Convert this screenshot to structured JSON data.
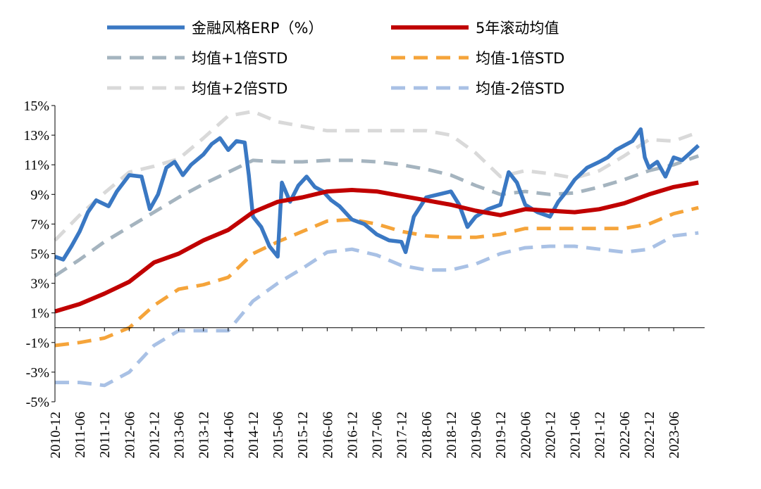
{
  "chart_data": {
    "type": "line",
    "title": "",
    "xlabel": "",
    "ylabel": "",
    "ylim": [
      -5,
      15
    ],
    "yticks": [
      -5,
      -3,
      -1,
      1,
      3,
      5,
      7,
      9,
      11,
      13,
      15
    ],
    "ytick_labels": [
      "-5%",
      "-3%",
      "-1%",
      "1%",
      "3%",
      "5%",
      "7%",
      "9%",
      "11%",
      "13%",
      "15%"
    ],
    "x_start": "2010-12",
    "x_end": "2024-01",
    "xtick_labels": [
      "2010-12",
      "2011-06",
      "2011-12",
      "2012-06",
      "2012-12",
      "2013-06",
      "2013-12",
      "2014-06",
      "2014-12",
      "2015-06",
      "2015-12",
      "2016-06",
      "2016-12",
      "2017-06",
      "2017-12",
      "2018-06",
      "2018-12",
      "2019-06",
      "2019-12",
      "2020-06",
      "2020-12",
      "2021-06",
      "2021-12",
      "2022-06",
      "2022-12",
      "2023-06"
    ],
    "legend_position": "top",
    "series": [
      {
        "name": "金融风格ERP（%）",
        "color": "#3A78C3",
        "style": "solid",
        "x": [
          "2010-12",
          "2011-02",
          "2011-04",
          "2011-06",
          "2011-08",
          "2011-10",
          "2012-01",
          "2012-03",
          "2012-06",
          "2012-09",
          "2012-11",
          "2013-01",
          "2013-03",
          "2013-05",
          "2013-07",
          "2013-09",
          "2013-12",
          "2014-02",
          "2014-04",
          "2014-06",
          "2014-08",
          "2014-10",
          "2014-11",
          "2014-12",
          "2015-02",
          "2015-04",
          "2015-06",
          "2015-07",
          "2015-09",
          "2015-11",
          "2016-01",
          "2016-03",
          "2016-05",
          "2016-07",
          "2016-09",
          "2016-12",
          "2017-03",
          "2017-06",
          "2017-09",
          "2017-12",
          "2018-01",
          "2018-03",
          "2018-06",
          "2018-09",
          "2018-12",
          "2019-02",
          "2019-04",
          "2019-06",
          "2019-09",
          "2019-12",
          "2020-02",
          "2020-04",
          "2020-06",
          "2020-09",
          "2020-12",
          "2021-02",
          "2021-04",
          "2021-06",
          "2021-09",
          "2021-12",
          "2022-02",
          "2022-04",
          "2022-06",
          "2022-08",
          "2022-10",
          "2022-11",
          "2022-12",
          "2023-02",
          "2023-04",
          "2023-06",
          "2023-08",
          "2023-10",
          "2023-12"
        ],
        "values": [
          4.8,
          4.6,
          5.5,
          6.5,
          7.8,
          8.6,
          8.2,
          9.2,
          10.3,
          10.2,
          8.0,
          9.0,
          10.8,
          11.2,
          10.3,
          11.0,
          11.7,
          12.4,
          12.8,
          12.0,
          12.6,
          12.5,
          10.3,
          7.5,
          6.8,
          5.5,
          4.8,
          9.8,
          8.5,
          9.6,
          10.2,
          9.5,
          9.2,
          8.6,
          8.2,
          7.3,
          7.0,
          6.3,
          5.9,
          5.8,
          5.1,
          7.5,
          8.8,
          9.0,
          9.2,
          8.3,
          6.8,
          7.5,
          8.0,
          8.3,
          10.5,
          9.8,
          8.3,
          7.8,
          7.5,
          8.5,
          9.2,
          10.0,
          10.8,
          11.2,
          11.5,
          12.0,
          12.3,
          12.6,
          13.4,
          11.5,
          10.8,
          11.2,
          10.2,
          11.5,
          11.3,
          11.8,
          12.3
        ]
      },
      {
        "name": "5年滚动均值",
        "color": "#C00000",
        "style": "solid",
        "x": [
          "2010-12",
          "2011-06",
          "2011-12",
          "2012-06",
          "2012-12",
          "2013-06",
          "2013-12",
          "2014-06",
          "2014-12",
          "2015-06",
          "2015-12",
          "2016-06",
          "2016-12",
          "2017-06",
          "2017-12",
          "2018-06",
          "2018-12",
          "2019-06",
          "2019-12",
          "2020-06",
          "2020-12",
          "2021-06",
          "2021-12",
          "2022-06",
          "2022-12",
          "2023-06",
          "2023-12"
        ],
        "values": [
          1.1,
          1.6,
          2.3,
          3.1,
          4.4,
          5.0,
          5.9,
          6.6,
          7.8,
          8.5,
          8.8,
          9.2,
          9.3,
          9.2,
          8.9,
          8.6,
          8.3,
          7.9,
          7.6,
          8.0,
          7.9,
          7.8,
          8.0,
          8.4,
          9.0,
          9.5,
          9.8
        ]
      },
      {
        "name": "均值+1倍STD",
        "color": "#A5B4BF",
        "style": "dashed",
        "x": [
          "2010-12",
          "2011-06",
          "2011-12",
          "2012-06",
          "2012-12",
          "2013-06",
          "2013-12",
          "2014-06",
          "2014-12",
          "2015-06",
          "2015-12",
          "2016-06",
          "2016-12",
          "2017-06",
          "2017-12",
          "2018-06",
          "2018-12",
          "2019-06",
          "2019-12",
          "2020-06",
          "2020-12",
          "2021-06",
          "2021-12",
          "2022-06",
          "2022-12",
          "2023-06",
          "2023-12"
        ],
        "values": [
          3.5,
          4.6,
          5.8,
          6.8,
          7.8,
          8.8,
          9.7,
          10.5,
          11.3,
          11.2,
          11.2,
          11.3,
          11.3,
          11.2,
          11.0,
          10.7,
          10.3,
          9.6,
          9.0,
          9.2,
          9.0,
          9.1,
          9.5,
          10.0,
          10.6,
          11.0,
          11.6
        ]
      },
      {
        "name": "均值-1倍STD",
        "color": "#F5A43A",
        "style": "dashed",
        "x": [
          "2010-12",
          "2011-06",
          "2011-12",
          "2012-06",
          "2012-12",
          "2013-06",
          "2013-12",
          "2014-06",
          "2014-12",
          "2015-06",
          "2015-12",
          "2016-06",
          "2016-12",
          "2017-06",
          "2017-12",
          "2018-06",
          "2018-12",
          "2019-06",
          "2019-12",
          "2020-06",
          "2020-12",
          "2021-06",
          "2021-12",
          "2022-06",
          "2022-12",
          "2023-06",
          "2023-12"
        ],
        "values": [
          -1.2,
          -1.0,
          -0.7,
          0.0,
          1.5,
          2.6,
          2.9,
          3.4,
          5.0,
          5.8,
          6.5,
          7.2,
          7.3,
          7.0,
          6.5,
          6.2,
          6.1,
          6.1,
          6.3,
          6.7,
          6.7,
          6.7,
          6.7,
          6.7,
          7.0,
          7.7,
          8.1
        ]
      },
      {
        "name": "均值+2倍STD",
        "color": "#D9D9D9",
        "style": "dashed",
        "x": [
          "2010-12",
          "2011-06",
          "2011-12",
          "2012-06",
          "2012-12",
          "2013-06",
          "2013-12",
          "2014-06",
          "2014-12",
          "2015-06",
          "2015-12",
          "2016-06",
          "2016-12",
          "2017-06",
          "2017-12",
          "2018-06",
          "2018-12",
          "2019-06",
          "2019-12",
          "2020-06",
          "2020-12",
          "2021-06",
          "2021-12",
          "2022-06",
          "2022-12",
          "2023-06",
          "2023-12"
        ],
        "values": [
          5.9,
          7.6,
          9.1,
          10.5,
          10.9,
          11.4,
          12.8,
          14.3,
          14.6,
          13.9,
          13.6,
          13.3,
          13.3,
          13.3,
          13.3,
          13.3,
          13.0,
          11.8,
          10.2,
          10.6,
          10.4,
          10.1,
          10.6,
          11.6,
          12.7,
          12.6,
          13.2
        ]
      },
      {
        "name": "均值-2倍STD",
        "color": "#A9C1E5",
        "style": "dashed",
        "x": [
          "2010-12",
          "2011-06",
          "2011-12",
          "2012-06",
          "2012-12",
          "2013-06",
          "2013-12",
          "2014-06",
          "2014-12",
          "2015-06",
          "2015-12",
          "2016-06",
          "2016-12",
          "2017-06",
          "2017-12",
          "2018-06",
          "2018-12",
          "2019-06",
          "2019-12",
          "2020-06",
          "2020-12",
          "2021-06",
          "2021-12",
          "2022-06",
          "2022-12",
          "2023-06",
          "2023-12"
        ],
        "values": [
          -3.7,
          -3.7,
          -3.9,
          -3.0,
          -1.2,
          -0.2,
          -0.2,
          -0.2,
          1.8,
          3.0,
          4.0,
          5.1,
          5.3,
          4.9,
          4.2,
          3.9,
          3.9,
          4.3,
          5.0,
          5.4,
          5.5,
          5.5,
          5.3,
          5.1,
          5.3,
          6.2,
          6.4
        ]
      }
    ]
  }
}
